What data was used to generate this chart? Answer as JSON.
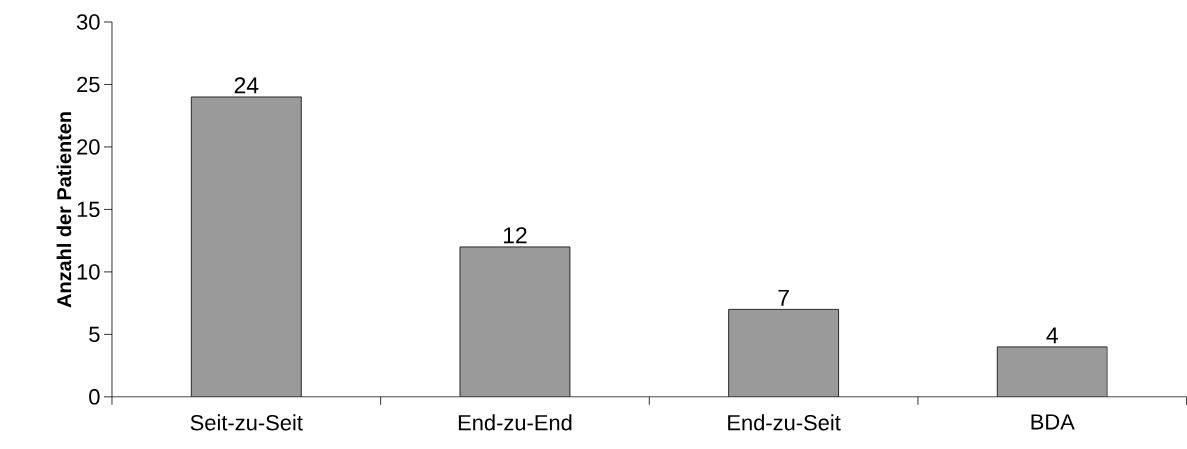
{
  "chart_data": {
    "type": "bar",
    "ylabel": "**Anzahl der Patienten**",
    "categories": [
      "Seit-zu-Seit",
      "End-zu-End",
      "End-zu-Seit",
      "BDA"
    ],
    "values": [
      24,
      12,
      7,
      4
    ],
    "color": "#9a9a9a",
    "ylim": [
      0,
      30
    ],
    "yticks": [
      0,
      5,
      10,
      15,
      20,
      25,
      30
    ],
    "data_labels": true
  }
}
